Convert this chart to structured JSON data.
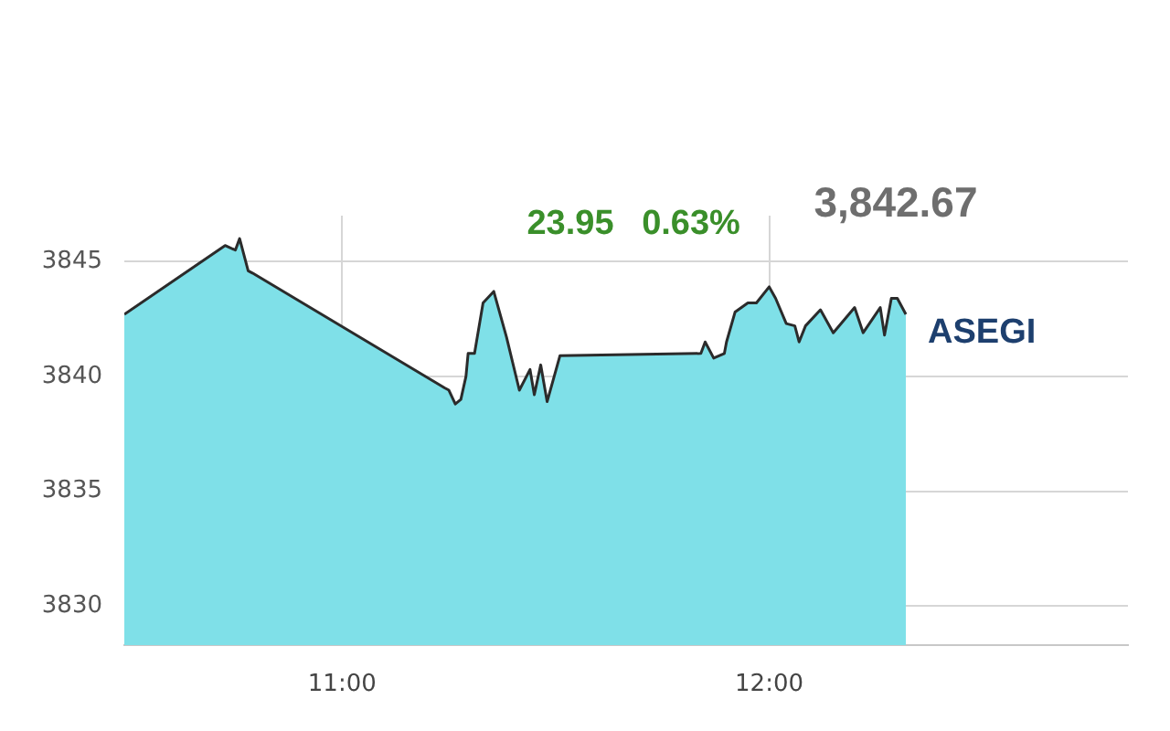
{
  "chart_data": {
    "type": "area",
    "annotations": [
      "23.95",
      "0.63%",
      "3,842.67"
    ],
    "series": [
      {
        "name": "ASEGI",
        "color": "#7fe0e8",
        "x": [
          10.49,
          10.726,
          10.75,
          10.76,
          10.78,
          10.79,
          11.24,
          11.25,
          11.265,
          11.278,
          11.29,
          11.295,
          11.31,
          11.33,
          11.355,
          11.385,
          11.415,
          11.44,
          11.45,
          11.465,
          11.48,
          11.51,
          11.84,
          11.85,
          11.87,
          11.895,
          11.9,
          11.92,
          11.95,
          11.97,
          12.0,
          12.015,
          12.04,
          12.06,
          12.07,
          12.085,
          12.12,
          12.15,
          12.2,
          12.22,
          12.26,
          12.27,
          12.286,
          12.3,
          12.32
        ],
        "values": [
          3842.7,
          3845.7,
          3845.5,
          3846.0,
          3844.6,
          3844.5,
          3839.5,
          3839.4,
          3838.8,
          3839.0,
          3840.0,
          3841.0,
          3841.0,
          3843.2,
          3843.7,
          3841.7,
          3839.4,
          3840.3,
          3839.2,
          3840.5,
          3838.9,
          3840.9,
          3841.0,
          3841.5,
          3840.8,
          3841.0,
          3841.5,
          3842.8,
          3843.2,
          3843.2,
          3843.9,
          3843.4,
          3842.3,
          3842.2,
          3841.5,
          3842.2,
          3842.9,
          3841.9,
          3843.0,
          3841.9,
          3843.0,
          3841.8,
          3843.4,
          3843.4,
          3842.7
        ]
      }
    ],
    "xlim": [
      10.49,
      12.84
    ],
    "xticks": [
      {
        "value": 11,
        "label": "11:00"
      },
      {
        "value": 12,
        "label": "12:00"
      }
    ],
    "ylim": [
      3828.3,
      3847
    ],
    "yticks": [
      3830,
      3835,
      3840,
      3845
    ],
    "grid": true,
    "legend": false,
    "marker": "none",
    "line_style": "solid"
  }
}
